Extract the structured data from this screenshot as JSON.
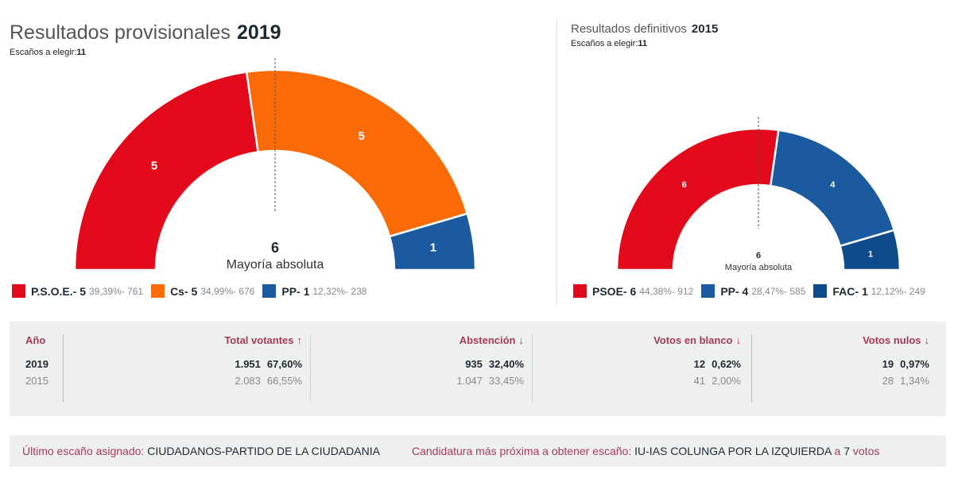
{
  "panel_2019": {
    "title": "Resultados provisionales",
    "year": "2019",
    "seats_label": "Escaños a elegir:",
    "seats_total": "11",
    "majority_number": "6",
    "majority_label": "Mayoría absoluta",
    "legend": [
      {
        "name": "P.S.O.E.- 5",
        "stats": "39,39%- 761"
      },
      {
        "name": "Cs- 5",
        "stats": "34,99%- 676"
      },
      {
        "name": "PP- 1",
        "stats": "12,32%- 238"
      }
    ]
  },
  "panel_2015": {
    "title": "Resultados definitivos",
    "year": "2015",
    "seats_label": "Escaños a elegir:",
    "seats_total": "11",
    "majority_number": "6",
    "majority_label": "Mayoría absoluta",
    "legend": [
      {
        "name": "PSOE- 6",
        "stats": "44,38%- 912"
      },
      {
        "name": "PP- 4",
        "stats": "28,47%- 585"
      },
      {
        "name": "FAC- 1",
        "stats": "12,12%- 249"
      }
    ]
  },
  "chart_data": [
    {
      "type": "pie",
      "subtype": "semicircle-parliament",
      "title": "Resultados provisionales 2019",
      "total_seats": 11,
      "majority": 6,
      "series": [
        {
          "name": "P.S.O.E.",
          "seats": 5,
          "percent": 39.39,
          "votes": 761,
          "color": "#e1091a"
        },
        {
          "name": "Cs",
          "seats": 5,
          "percent": 34.99,
          "votes": 676,
          "color": "#fa6a06"
        },
        {
          "name": "PP",
          "seats": 1,
          "percent": 12.32,
          "votes": 238,
          "color": "#1c5aa0"
        }
      ]
    },
    {
      "type": "pie",
      "subtype": "semicircle-parliament",
      "title": "Resultados definitivos 2015",
      "total_seats": 11,
      "majority": 6,
      "series": [
        {
          "name": "PSOE",
          "seats": 6,
          "percent": 44.38,
          "votes": 912,
          "color": "#e1091a"
        },
        {
          "name": "PP",
          "seats": 4,
          "percent": 28.47,
          "votes": 585,
          "color": "#1c5aa0"
        },
        {
          "name": "FAC",
          "seats": 1,
          "percent": 12.12,
          "votes": 249,
          "color": "#0f4a8a"
        }
      ]
    }
  ],
  "stats": {
    "year_header": "Año",
    "rows_years": [
      "2019",
      "2015"
    ],
    "columns": [
      {
        "header": "Total votantes",
        "arrow": "↑",
        "current": [
          "1.951",
          "67,60%"
        ],
        "previous": [
          "2.083",
          "66,55%"
        ]
      },
      {
        "header": "Abstención",
        "arrow": "↓",
        "current": [
          "935",
          "32,40%"
        ],
        "previous": [
          "1.047",
          "33,45%"
        ]
      },
      {
        "header": "Votos en blanco",
        "arrow": "↓",
        "current": [
          "12",
          "0,62%"
        ],
        "previous": [
          "41",
          "2,00%"
        ]
      },
      {
        "header": "Votos nulos",
        "arrow": "↓",
        "current": [
          "19",
          "0,97%"
        ],
        "previous": [
          "28",
          "1,34%"
        ]
      }
    ]
  },
  "footer": {
    "last_seat_label": "Último escaño asignado:",
    "last_seat_value": "CIUDADANOS-PARTIDO DE LA CIUDADANIA",
    "next_label": "Candidatura más próxima a obtener escaño:",
    "next_value": "IU-IAS COLUNGA POR LA IZQUIERDA",
    "next_a": "a",
    "next_votes": "7",
    "next_votes_word": "votos"
  }
}
